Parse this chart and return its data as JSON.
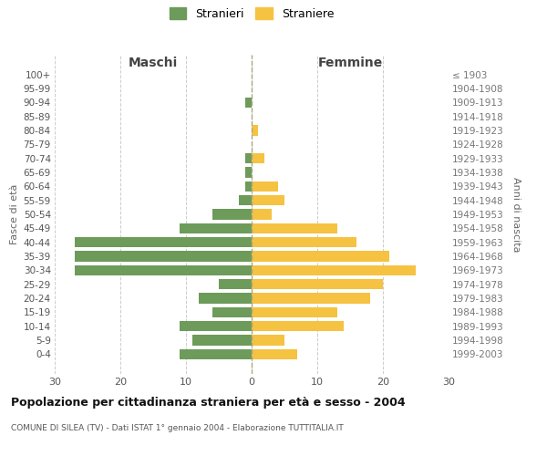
{
  "age_groups": [
    "100+",
    "95-99",
    "90-94",
    "85-89",
    "80-84",
    "75-79",
    "70-74",
    "65-69",
    "60-64",
    "55-59",
    "50-54",
    "45-49",
    "40-44",
    "35-39",
    "30-34",
    "25-29",
    "20-24",
    "15-19",
    "10-14",
    "5-9",
    "0-4"
  ],
  "birth_years": [
    "≤ 1903",
    "1904-1908",
    "1909-1913",
    "1914-1918",
    "1919-1923",
    "1924-1928",
    "1929-1933",
    "1934-1938",
    "1939-1943",
    "1944-1948",
    "1949-1953",
    "1954-1958",
    "1959-1963",
    "1964-1968",
    "1969-1973",
    "1974-1978",
    "1979-1983",
    "1984-1988",
    "1989-1993",
    "1994-1998",
    "1999-2003"
  ],
  "males": [
    0,
    0,
    1,
    0,
    0,
    0,
    1,
    1,
    1,
    2,
    6,
    11,
    27,
    27,
    27,
    5,
    8,
    6,
    11,
    9,
    11
  ],
  "females": [
    0,
    0,
    0,
    0,
    1,
    0,
    2,
    0,
    4,
    5,
    3,
    13,
    16,
    21,
    25,
    20,
    18,
    13,
    14,
    5,
    7
  ],
  "male_color": "#6d9b5a",
  "female_color": "#f5c242",
  "male_label": "Stranieri",
  "female_label": "Straniere",
  "title": "Popolazione per cittadinanza straniera per età e sesso - 2004",
  "subtitle": "COMUNE DI SILEA (TV) - Dati ISTAT 1° gennaio 2004 - Elaborazione TUTTITALIA.IT",
  "xlabel_left": "Maschi",
  "xlabel_right": "Femmine",
  "ylabel_left": "Fasce di età",
  "ylabel_right": "Anni di nascita",
  "xlim": 30,
  "background_color": "#ffffff",
  "grid_color": "#cccccc"
}
